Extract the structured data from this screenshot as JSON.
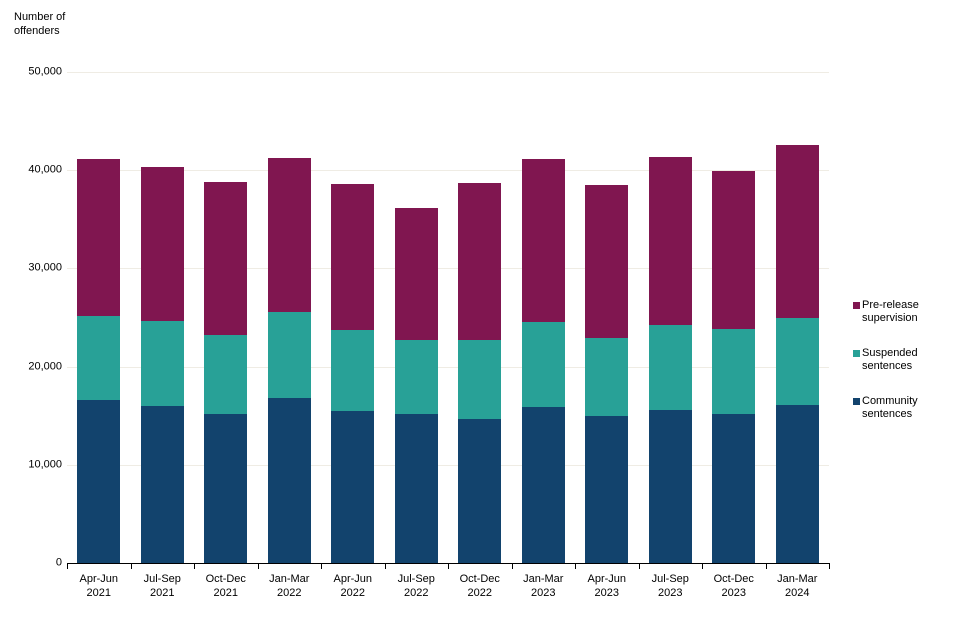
{
  "chart_data": {
    "type": "bar",
    "stacked": true,
    "title": "",
    "ylabel": "Number of\noffenders",
    "xlabel": "",
    "categories": [
      "Apr-Jun 2021",
      "Jul-Sep 2021",
      "Oct-Dec 2021",
      "Jan-Mar 2022",
      "Apr-Jun 2022",
      "Jul-Sep 2022",
      "Oct-Dec 2022",
      "Jan-Mar 2023",
      "Apr-Jun 2023",
      "Jul-Sep 2023",
      "Oct-Dec 2023",
      "Jan-Mar 2024"
    ],
    "series": [
      {
        "name": "Community sentences",
        "color": "#12436D",
        "values": [
          16600,
          16000,
          15200,
          16800,
          15500,
          15200,
          14700,
          15900,
          15000,
          15600,
          15200,
          16100
        ]
      },
      {
        "name": "Suspended sentences",
        "color": "#28A197",
        "values": [
          8600,
          8600,
          8000,
          8800,
          8200,
          7500,
          8000,
          8600,
          7900,
          8600,
          8600,
          8900
        ]
      },
      {
        "name": "Pre-release supervision",
        "color": "#801650",
        "values": [
          15900,
          15700,
          15600,
          15600,
          14900,
          13500,
          16000,
          16600,
          15600,
          17100,
          16100,
          17600
        ]
      }
    ],
    "stack_totals": [
      41100,
      40300,
      38800,
      41200,
      38600,
      36200,
      38700,
      41100,
      38500,
      41300,
      39900,
      42600
    ],
    "ylim": [
      0,
      50000
    ],
    "y_ticks": [
      {
        "value": 0,
        "label": "0"
      },
      {
        "value": 10000,
        "label": "10,000"
      },
      {
        "value": 20000,
        "label": "20,000"
      },
      {
        "value": 30000,
        "label": "30,000"
      },
      {
        "value": 40000,
        "label": "40,000"
      },
      {
        "value": 50000,
        "label": "50,000"
      }
    ],
    "grid": "horizontal",
    "legend_position": "right",
    "legend_order_top_to_bottom": [
      "Pre-release supervision",
      "Suspended sentences",
      "Community sentences"
    ]
  },
  "colors": {
    "gridline": "#EFECE4",
    "axis_line": "#000000",
    "text": "#000000",
    "background": "#FFFFFF"
  }
}
